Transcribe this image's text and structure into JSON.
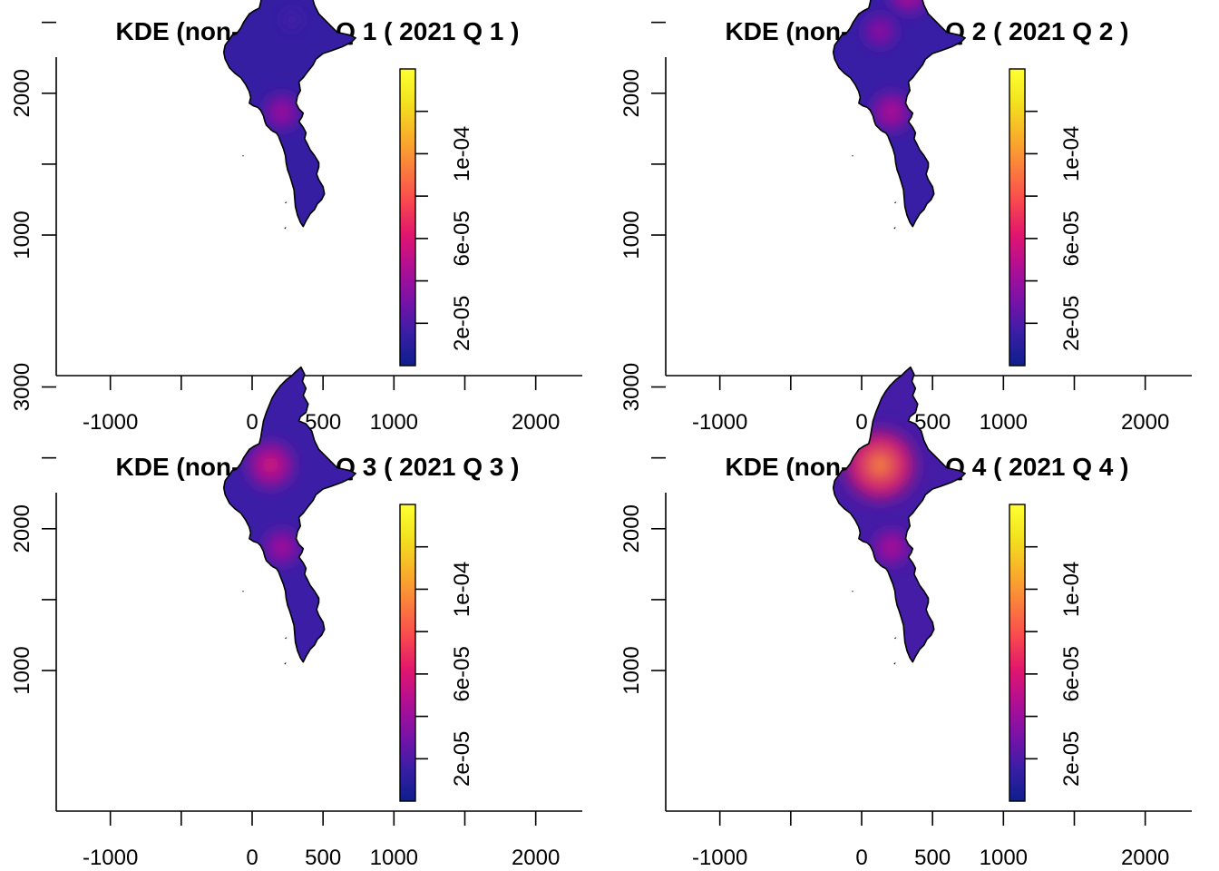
{
  "chart_data": [
    {
      "type": "heatmap",
      "title": "KDE (non-spatial) Q 1 ( 2021 Q 1 )",
      "xlabel": "",
      "ylabel": "",
      "xlim": [
        -1380,
        2220
      ],
      "ylim": [
        985,
        3215
      ],
      "x_ticks": [
        -1000,
        -500,
        0,
        500,
        1000,
        1500,
        2000
      ],
      "x_tick_labels": [
        "-1000",
        "",
        "0",
        "500",
        "1000",
        "",
        "2000"
      ],
      "y_ticks": [
        1000,
        1500,
        2000,
        2500,
        3000
      ],
      "y_tick_labels": [
        "1000",
        "",
        "2000",
        "",
        "3000"
      ],
      "colorbar": {
        "min": 0,
        "max": 0.00014,
        "ticks": [
          2e-05,
          4e-05,
          6e-05,
          8e-05,
          0.0001,
          0.00012
        ],
        "tick_labels": [
          "2e-05",
          "",
          "6e-05",
          "",
          "1e-04",
          ""
        ]
      },
      "background_density": 1.4e-05,
      "hotspots": [
        {
          "x": 210,
          "y": 1870,
          "density": 3e-05
        },
        {
          "x": 280,
          "y": 2520,
          "density": 5e-06
        }
      ],
      "grid": false,
      "legend": "right"
    },
    {
      "type": "heatmap",
      "title": "KDE (non-spatial) Q 2 ( 2021 Q 2 )",
      "xlabel": "",
      "ylabel": "",
      "xlim": [
        -1380,
        2220
      ],
      "ylim": [
        985,
        3215
      ],
      "x_ticks": [
        -1000,
        -500,
        0,
        500,
        1000,
        1500,
        2000
      ],
      "x_tick_labels": [
        "-1000",
        "",
        "0",
        "500",
        "1000",
        "",
        "2000"
      ],
      "y_ticks": [
        1000,
        1500,
        2000,
        2500,
        3000
      ],
      "y_tick_labels": [
        "1000",
        "",
        "2000",
        "",
        "3000"
      ],
      "colorbar": {
        "min": 0,
        "max": 0.00014,
        "ticks": [
          2e-05,
          4e-05,
          6e-05,
          8e-05,
          0.0001,
          0.00012
        ],
        "tick_labels": [
          "2e-05",
          "",
          "6e-05",
          "",
          "1e-04",
          ""
        ]
      },
      "background_density": 1.5e-05,
      "hotspots": [
        {
          "x": 330,
          "y": 2700,
          "density": 3.5e-05
        },
        {
          "x": 130,
          "y": 2440,
          "density": 2.5e-05
        },
        {
          "x": 210,
          "y": 1870,
          "density": 3.5e-05
        }
      ],
      "grid": false,
      "legend": "right"
    },
    {
      "type": "heatmap",
      "title": "KDE (non-spatial) Q 3 ( 2021 Q 3 )",
      "xlabel": "",
      "ylabel": "",
      "xlim": [
        -1380,
        2220
      ],
      "ylim": [
        985,
        3215
      ],
      "x_ticks": [
        -1000,
        -500,
        0,
        500,
        1000,
        1500,
        2000
      ],
      "x_tick_labels": [
        "-1000",
        "",
        "0",
        "500",
        "1000",
        "",
        "2000"
      ],
      "y_ticks": [
        1000,
        1500,
        2000,
        2500,
        3000
      ],
      "y_tick_labels": [
        "1000",
        "",
        "2000",
        "",
        "3000"
      ],
      "colorbar": {
        "min": 0,
        "max": 0.00014,
        "ticks": [
          2e-05,
          4e-05,
          6e-05,
          8e-05,
          0.0001,
          0.00012
        ],
        "tick_labels": [
          "2e-05",
          "",
          "6e-05",
          "",
          "1e-04",
          ""
        ]
      },
      "background_density": 1.6e-05,
      "hotspots": [
        {
          "x": 130,
          "y": 2450,
          "density": 4.5e-05
        },
        {
          "x": 210,
          "y": 1870,
          "density": 3e-05
        }
      ],
      "grid": false,
      "legend": "right"
    },
    {
      "type": "heatmap",
      "title": "KDE (non-spatial) Q 4 ( 2021 Q 4 )",
      "xlabel": "",
      "ylabel": "",
      "xlim": [
        -1380,
        2220
      ],
      "ylim": [
        985,
        3215
      ],
      "x_ticks": [
        -1000,
        -500,
        0,
        500,
        1000,
        1500,
        2000
      ],
      "x_tick_labels": [
        "-1000",
        "",
        "0",
        "500",
        "1000",
        "",
        "2000"
      ],
      "y_ticks": [
        1000,
        1500,
        2000,
        2500,
        3000
      ],
      "y_tick_labels": [
        "1000",
        "",
        "2000",
        "",
        "3000"
      ],
      "colorbar": {
        "min": 0,
        "max": 0.00014,
        "ticks": [
          2e-05,
          4e-05,
          6e-05,
          8e-05,
          0.0001,
          0.00012
        ],
        "tick_labels": [
          "2e-05",
          "",
          "6e-05",
          "",
          "1e-04",
          ""
        ]
      },
      "background_density": 1.8e-05,
      "hotspots": [
        {
          "x": 130,
          "y": 2450,
          "density": 8e-05
        },
        {
          "x": 210,
          "y": 1870,
          "density": 3e-05
        }
      ],
      "grid": false,
      "legend": "right"
    }
  ],
  "colors": {
    "palette": [
      "#0d1f8a",
      "#3a1ea6",
      "#7a12a6",
      "#b10f93",
      "#e1166d",
      "#f84a4e",
      "#fb7f3c",
      "#f8b22a",
      "#f2e31f",
      "#ffff33"
    ],
    "outline": "#000000",
    "axis": "#000000"
  },
  "map_region": {
    "outline": [
      [
        345,
        3140
      ],
      [
        370,
        3090
      ],
      [
        355,
        3040
      ],
      [
        380,
        2990
      ],
      [
        360,
        2940
      ],
      [
        395,
        2880
      ],
      [
        380,
        2820
      ],
      [
        340,
        2790
      ],
      [
        330,
        2760
      ],
      [
        380,
        2740
      ],
      [
        420,
        2690
      ],
      [
        440,
        2620
      ],
      [
        470,
        2560
      ],
      [
        520,
        2510
      ],
      [
        560,
        2470
      ],
      [
        600,
        2430
      ],
      [
        690,
        2410
      ],
      [
        730,
        2390
      ],
      [
        700,
        2360
      ],
      [
        640,
        2330
      ],
      [
        560,
        2300
      ],
      [
        500,
        2280
      ],
      [
        450,
        2240
      ],
      [
        430,
        2200
      ],
      [
        390,
        2150
      ],
      [
        360,
        2110
      ],
      [
        330,
        2080
      ],
      [
        340,
        2020
      ],
      [
        320,
        1980
      ],
      [
        310,
        1930
      ],
      [
        330,
        1890
      ],
      [
        360,
        1860
      ],
      [
        350,
        1830
      ],
      [
        330,
        1800
      ],
      [
        360,
        1760
      ],
      [
        380,
        1720
      ],
      [
        370,
        1680
      ],
      [
        390,
        1640
      ],
      [
        410,
        1600
      ],
      [
        440,
        1560
      ],
      [
        470,
        1510
      ],
      [
        470,
        1480
      ],
      [
        455,
        1430
      ],
      [
        470,
        1390
      ],
      [
        500,
        1340
      ],
      [
        510,
        1290
      ],
      [
        490,
        1250
      ],
      [
        460,
        1220
      ],
      [
        440,
        1180
      ],
      [
        410,
        1150
      ],
      [
        380,
        1100
      ],
      [
        360,
        1060
      ],
      [
        340,
        1090
      ],
      [
        320,
        1140
      ],
      [
        305,
        1200
      ],
      [
        300,
        1260
      ],
      [
        295,
        1320
      ],
      [
        280,
        1370
      ],
      [
        265,
        1420
      ],
      [
        250,
        1460
      ],
      [
        240,
        1510
      ],
      [
        235,
        1560
      ],
      [
        220,
        1610
      ],
      [
        200,
        1660
      ],
      [
        185,
        1700
      ],
      [
        170,
        1720
      ],
      [
        150,
        1730
      ],
      [
        135,
        1740
      ],
      [
        120,
        1755
      ],
      [
        100,
        1775
      ],
      [
        90,
        1800
      ],
      [
        80,
        1840
      ],
      [
        60,
        1880
      ],
      [
        40,
        1900
      ],
      [
        10,
        1910
      ],
      [
        -20,
        1930
      ],
      [
        -10,
        1970
      ],
      [
        -20,
        2010
      ],
      [
        -45,
        2060
      ],
      [
        -80,
        2110
      ],
      [
        -120,
        2140
      ],
      [
        -160,
        2180
      ],
      [
        -190,
        2240
      ],
      [
        -200,
        2290
      ],
      [
        -190,
        2340
      ],
      [
        -160,
        2380
      ],
      [
        -140,
        2410
      ],
      [
        -110,
        2420
      ],
      [
        -80,
        2460
      ],
      [
        -60,
        2500
      ],
      [
        -40,
        2530
      ],
      [
        -20,
        2560
      ],
      [
        10,
        2580
      ],
      [
        50,
        2600
      ],
      [
        60,
        2640
      ],
      [
        70,
        2700
      ],
      [
        80,
        2760
      ],
      [
        100,
        2820
      ],
      [
        120,
        2870
      ],
      [
        140,
        2920
      ],
      [
        170,
        2970
      ],
      [
        200,
        3010
      ],
      [
        240,
        3050
      ],
      [
        280,
        3080
      ],
      [
        310,
        3110
      ]
    ],
    "islands": [
      [
        [
          -70,
          1560
        ],
        [
          -60,
          1565
        ],
        [
          -62,
          1552
        ]
      ],
      [
        [
          230,
          1230
        ],
        [
          245,
          1236
        ],
        [
          238,
          1222
        ]
      ],
      [
        [
          225,
          1050
        ],
        [
          240,
          1058
        ],
        [
          236,
          1042
        ]
      ]
    ]
  }
}
